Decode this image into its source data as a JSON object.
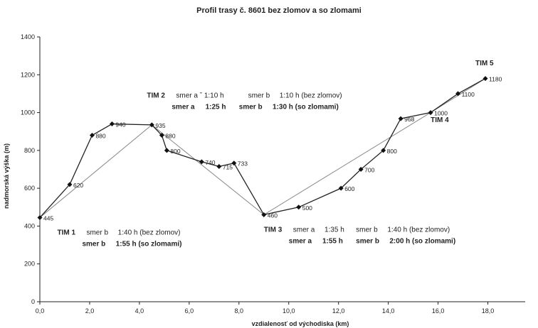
{
  "chart_data": {
    "type": "line",
    "title": "Profil trasy č. 8601 bez zlomov a so zlomami",
    "xlabel": "vzdialenosť od východiska (km)",
    "ylabel": "nadmorská výška (m)",
    "xlim": [
      0,
      19.5
    ],
    "ylim": [
      0,
      1400
    ],
    "xticks": [
      "0,0",
      "2,0",
      "4,0",
      "6,0",
      "8,0",
      "10,0",
      "12,0",
      "14,0",
      "16,0",
      "18,0"
    ],
    "yticks": [
      "0",
      "200",
      "400",
      "600",
      "800",
      "1000",
      "1200",
      "1400"
    ],
    "grid": false,
    "series": [
      {
        "points": [
          {
            "x": 0.0,
            "y": 445,
            "label": "445"
          },
          {
            "x": 1.2,
            "y": 620,
            "label": "620"
          },
          {
            "x": 2.1,
            "y": 880,
            "label": "880"
          },
          {
            "x": 2.9,
            "y": 940,
            "label": "940"
          },
          {
            "x": 4.5,
            "y": 935,
            "label": "935"
          },
          {
            "x": 4.9,
            "y": 880,
            "label": "880"
          },
          {
            "x": 5.1,
            "y": 800,
            "label": "800"
          },
          {
            "x": 6.5,
            "y": 740,
            "label": "740"
          },
          {
            "x": 7.2,
            "y": 715,
            "label": "715"
          },
          {
            "x": 7.8,
            "y": 733,
            "label": "733"
          },
          {
            "x": 9.0,
            "y": 460,
            "label": "460"
          },
          {
            "x": 10.4,
            "y": 500,
            "label": "500"
          },
          {
            "x": 12.1,
            "y": 600,
            "label": "600"
          },
          {
            "x": 12.9,
            "y": 700,
            "label": "700"
          },
          {
            "x": 13.8,
            "y": 800,
            "label": "800"
          },
          {
            "x": 14.5,
            "y": 968,
            "label": "968"
          },
          {
            "x": 15.7,
            "y": 1000,
            "label": "1000"
          },
          {
            "x": 16.8,
            "y": 1100,
            "label": "1100"
          },
          {
            "x": 17.9,
            "y": 1180,
            "label": "1180"
          }
        ]
      },
      {
        "points": [
          {
            "x": 0.0,
            "y": 445
          },
          {
            "x": 4.5,
            "y": 935
          },
          {
            "x": 9.0,
            "y": 460
          },
          {
            "x": 15.7,
            "y": 1000
          },
          {
            "x": 17.9,
            "y": 1180
          }
        ]
      }
    ],
    "annotations": [
      {
        "x": 0.7,
        "y": 355,
        "lines": [
          [
            "TIM 1",
            "smer b",
            "1:40 h (bez zlomov)"
          ],
          [
            "smer b",
            "1:55 h (so zlomami)"
          ]
        ]
      },
      {
        "x": 4.3,
        "y": 1080,
        "lines": [
          [
            "TIM 2",
            "smer a  ˇ 1:10 h",
            "smer b",
            "1:10 h (bez zlomov)"
          ],
          [
            "smer a",
            "1:25 h",
            "smer b",
            "1:30 h (so zlomami)"
          ]
        ]
      },
      {
        "x": 9.0,
        "y": 370,
        "lines": [
          [
            "TIM 3",
            "smer a",
            "1:35 h",
            "smer b",
            "1:40 h (bez zlomov)"
          ],
          [
            "smer a",
            "1:55 h",
            "smer b",
            "2:00 h (so zlomami)"
          ]
        ]
      },
      {
        "x": 15.7,
        "y": 950,
        "lines": [
          [
            "TIM 4"
          ]
        ]
      },
      {
        "x": 17.5,
        "y": 1250,
        "lines": [
          [
            "TIM 5"
          ]
        ]
      }
    ]
  }
}
